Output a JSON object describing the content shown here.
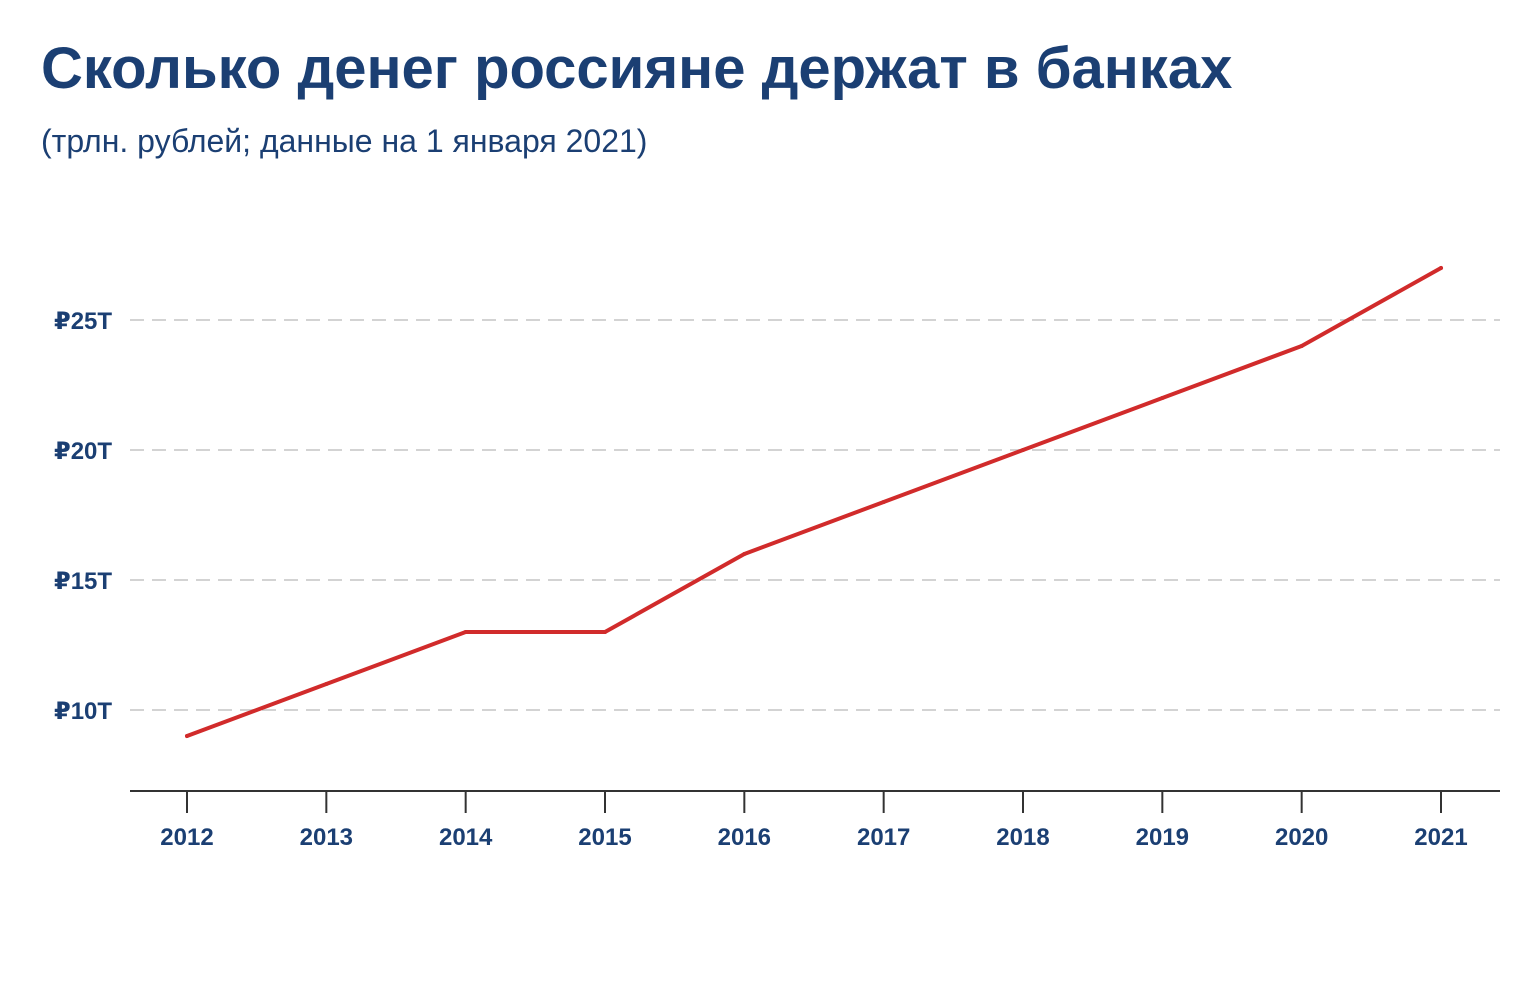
{
  "chart_data": {
    "type": "line",
    "title": "Сколько денег россияне держат в банках",
    "subtitle": "(трлн. рублей; данные на 1 января 2021)",
    "xlabel": "",
    "ylabel": "",
    "categories": [
      "2012",
      "2013",
      "2014",
      "2015",
      "2016",
      "2017",
      "2018",
      "2019",
      "2020",
      "2021"
    ],
    "series": [
      {
        "values": [
          9,
          11,
          13,
          13,
          16,
          18,
          20,
          22,
          24,
          27
        ],
        "color": "#d12b2b"
      }
    ],
    "yticks": [
      10,
      15,
      20,
      25
    ],
    "ytick_labels": [
      "₽10T",
      "₽15T",
      "₽20T",
      "₽25T"
    ],
    "ylim": [
      6.9,
      27
    ],
    "grid": true,
    "grid_style": "dashed",
    "legend": "none",
    "colors": {
      "text": "#1b3f73",
      "line": "#d12b2b",
      "grid": "#d3d3d3",
      "axis": "#333333"
    }
  }
}
